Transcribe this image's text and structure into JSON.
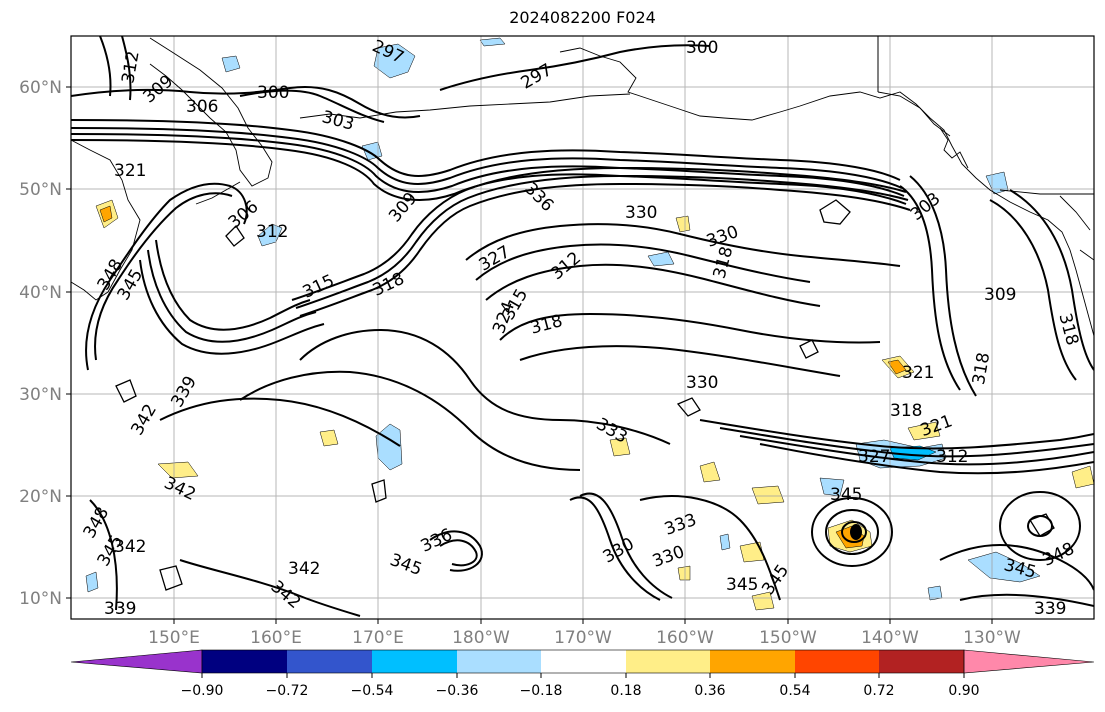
{
  "title": "2024082200 F024",
  "map": {
    "lat_labels": [
      "10°N",
      "20°N",
      "30°N",
      "40°N",
      "50°N",
      "60°N"
    ],
    "lon_labels": [
      "150°E",
      "160°E",
      "170°E",
      "180°W",
      "170°W",
      "160°W",
      "150°W",
      "140°W",
      "130°W"
    ],
    "contour_labels": [
      {
        "text": "297"
      },
      {
        "text": "300"
      },
      {
        "text": "297"
      },
      {
        "text": "312"
      },
      {
        "text": "309"
      },
      {
        "text": "306"
      },
      {
        "text": "300"
      },
      {
        "text": "303"
      },
      {
        "text": "321"
      },
      {
        "text": "306"
      },
      {
        "text": "312"
      },
      {
        "text": "309"
      },
      {
        "text": "336"
      },
      {
        "text": "330"
      },
      {
        "text": "330"
      },
      {
        "text": "327"
      },
      {
        "text": "312"
      },
      {
        "text": "318"
      },
      {
        "text": "315"
      },
      {
        "text": "318"
      },
      {
        "text": "315"
      },
      {
        "text": "318"
      },
      {
        "text": "324"
      },
      {
        "text": "348"
      },
      {
        "text": "345"
      },
      {
        "text": "342"
      },
      {
        "text": "339"
      },
      {
        "text": "330"
      },
      {
        "text": "321"
      },
      {
        "text": "318"
      },
      {
        "text": "318"
      },
      {
        "text": "321"
      },
      {
        "text": "327"
      },
      {
        "text": "312"
      },
      {
        "text": "309"
      },
      {
        "text": "303"
      },
      {
        "text": "333"
      },
      {
        "text": "342"
      },
      {
        "text": "348"
      },
      {
        "text": "345"
      },
      {
        "text": "342"
      },
      {
        "text": "339"
      },
      {
        "text": "336"
      },
      {
        "text": "345"
      },
      {
        "text": "342"
      },
      {
        "text": "342"
      },
      {
        "text": "330"
      },
      {
        "text": "333"
      },
      {
        "text": "330"
      },
      {
        "text": "345"
      },
      {
        "text": "345"
      },
      {
        "text": "345"
      },
      {
        "text": "348"
      },
      {
        "text": "345"
      },
      {
        "text": "339"
      },
      {
        "text": "318"
      }
    ]
  },
  "colorbar": {
    "colors": [
      "#9933cc",
      "#000080",
      "#3355cc",
      "#00bfff",
      "#aadeff",
      "#ffffff",
      "#ffee88",
      "#ffa500",
      "#ff4500",
      "#b22222",
      "#ff88aa"
    ],
    "tick_labels": [
      "−0.90",
      "−0.72",
      "−0.54",
      "−0.36",
      "−0.18",
      "0.18",
      "0.36",
      "0.54",
      "0.72",
      "0.90"
    ]
  }
}
